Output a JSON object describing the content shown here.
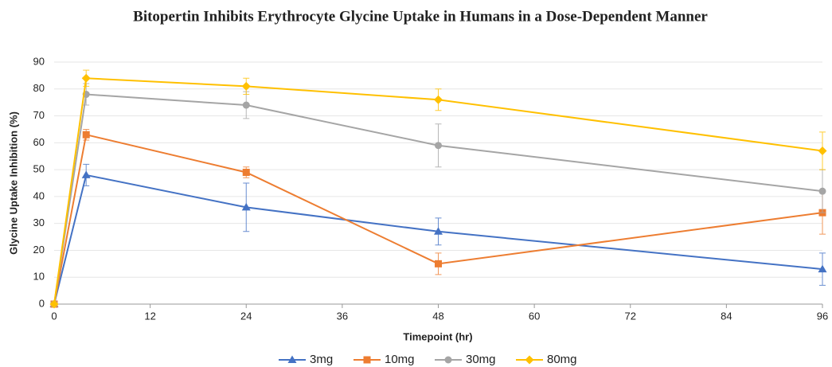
{
  "chart_data": {
    "type": "line",
    "title": "Bitopertin Inhibits Erythrocyte Glycine Uptake in Humans in a Dose-Dependent Manner",
    "x_label": "Timepoint (hr)",
    "y_label": "Glycine Uptake Inhibition (%)",
    "x": [
      0,
      4,
      24,
      48,
      96
    ],
    "series": [
      {
        "name": "3mg",
        "color": "#4472c4",
        "marker": "triangle",
        "values": [
          0,
          48,
          36,
          27,
          13
        ],
        "errors": [
          0,
          4,
          9,
          5,
          6
        ]
      },
      {
        "name": "10mg",
        "color": "#ed7d31",
        "marker": "square",
        "values": [
          0,
          63,
          49,
          15,
          34
        ],
        "errors": [
          0,
          2,
          2,
          4,
          8
        ]
      },
      {
        "name": "30mg",
        "color": "#a5a5a5",
        "marker": "circle",
        "values": [
          0,
          78,
          74,
          59,
          42
        ],
        "errors": [
          0,
          4,
          5,
          8,
          8
        ]
      },
      {
        "name": "80mg",
        "color": "#ffc000",
        "marker": "diamond",
        "values": [
          0,
          84,
          81,
          76,
          57
        ],
        "errors": [
          0,
          3,
          3,
          4,
          7
        ]
      }
    ],
    "xlim": [
      0,
      96
    ],
    "xticks": [
      0,
      12,
      24,
      36,
      48,
      60,
      72,
      84,
      96
    ],
    "ylim": [
      0,
      90
    ],
    "yticks": [
      0,
      10,
      20,
      30,
      40,
      50,
      60,
      70,
      80,
      90
    ],
    "grid": true,
    "legend": "bottom"
  }
}
